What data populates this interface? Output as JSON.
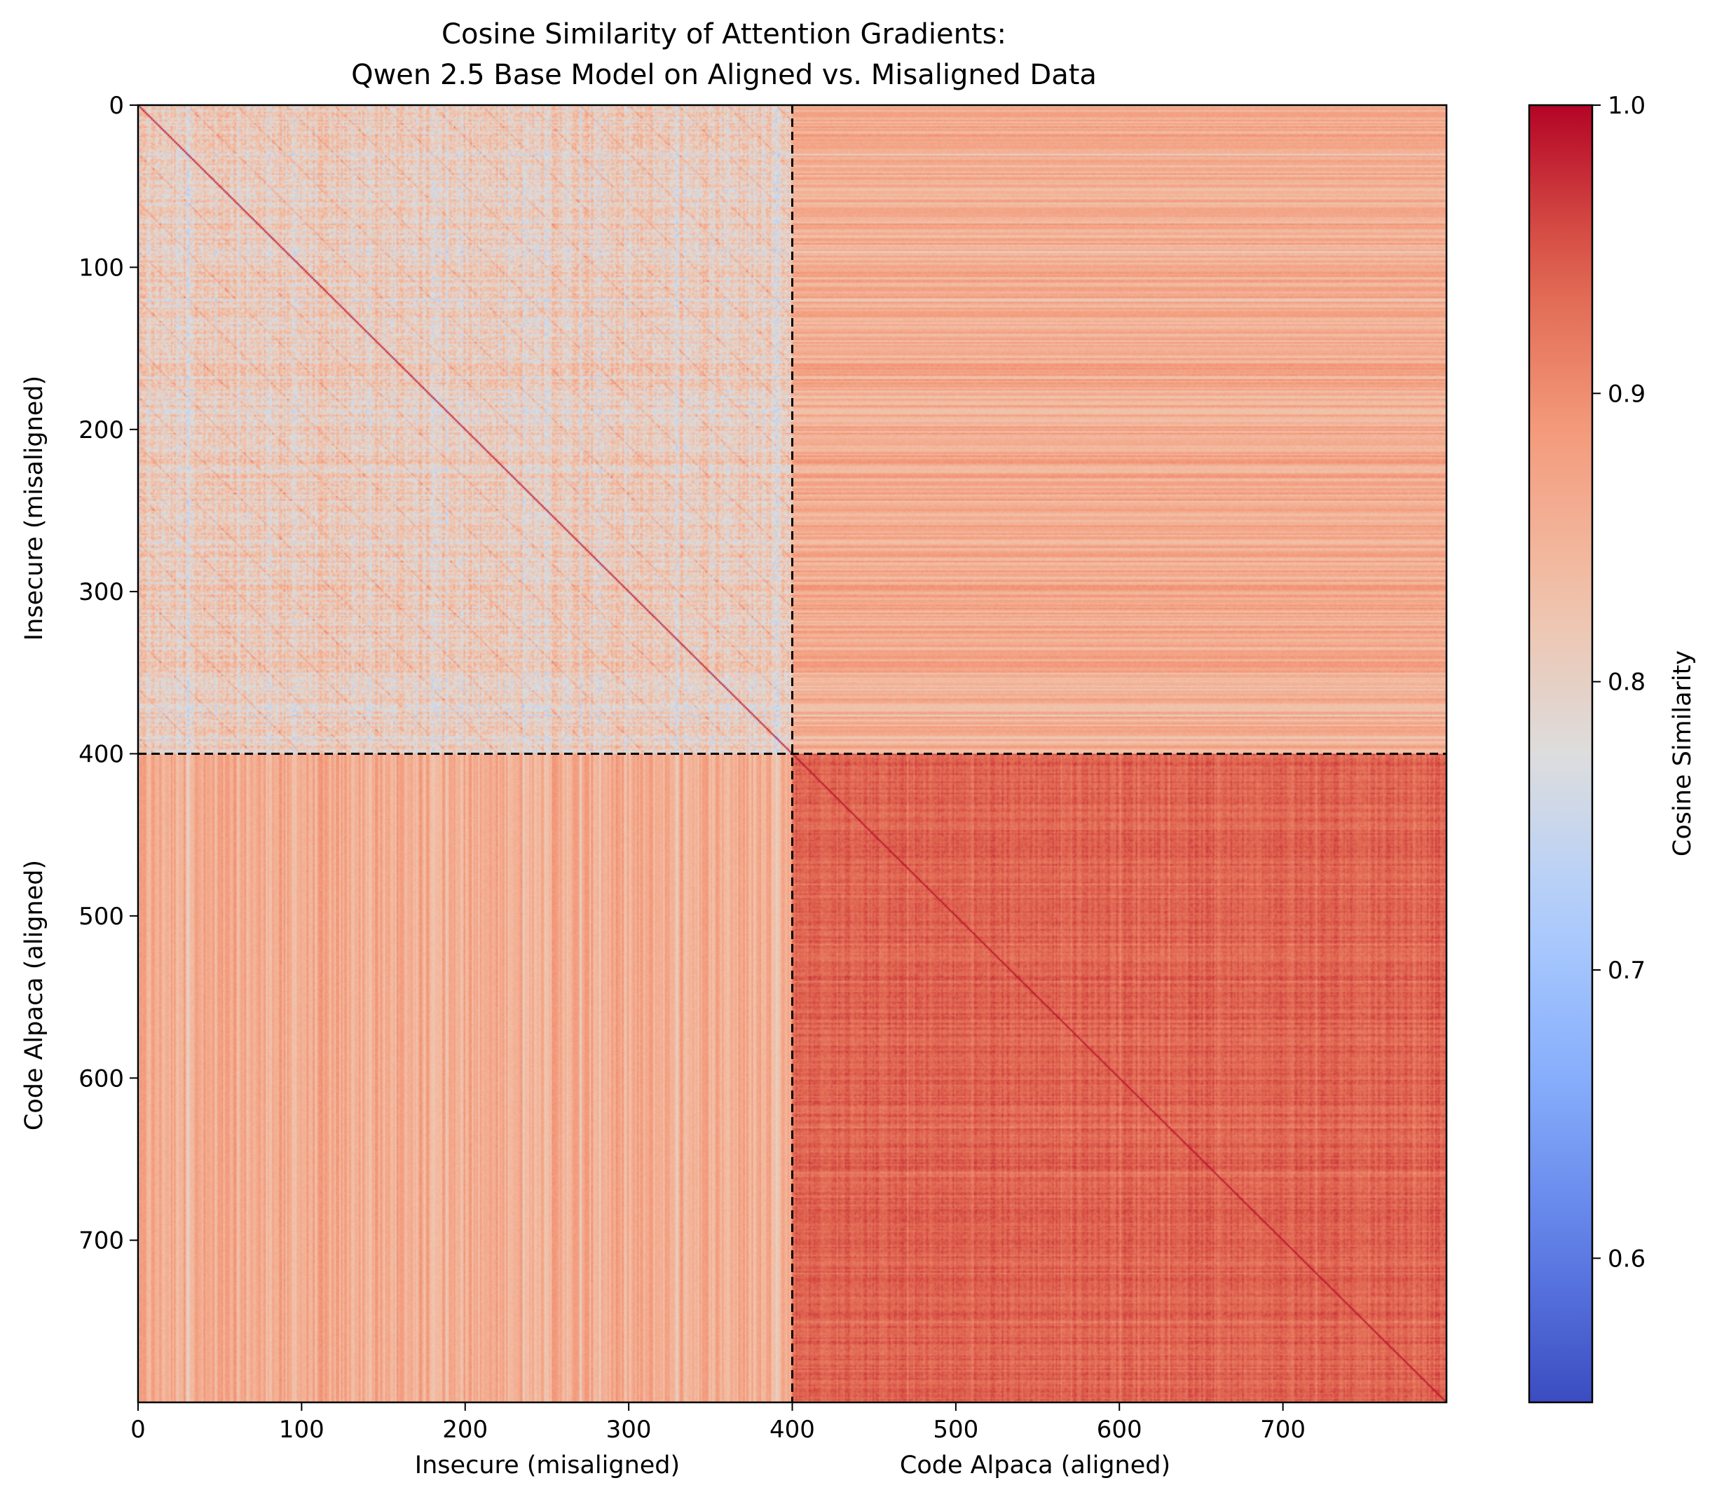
{
  "chart_data": {
    "type": "heatmap",
    "title": "Cosine Similarity of Attention Gradients:",
    "subtitle": "Qwen 2.5 Base Model on Aligned vs. Misaligned Data",
    "ylabel_top": "Insecure (misaligned)",
    "ylabel_bottom": "Code Alpaca (aligned)",
    "xlabel_left": "Insecure (misaligned)",
    "xlabel_right": "Code Alpaca (aligned)",
    "n_samples": 800,
    "group_boundary": 400,
    "xlim": [
      0,
      800
    ],
    "ylim": [
      800,
      0
    ],
    "x_ticks": [
      0,
      100,
      200,
      300,
      400,
      500,
      600,
      700
    ],
    "y_ticks": [
      0,
      100,
      200,
      300,
      400,
      500,
      600,
      700
    ],
    "colorbar": {
      "label": "Cosine Similarity",
      "colormap": "coolwarm",
      "vmin": 0.55,
      "vmax": 1.0,
      "ticks": [
        0.6,
        0.7,
        0.8,
        0.9,
        1.0
      ],
      "tick_labels": [
        "0.6",
        "0.7",
        "0.8",
        "0.9",
        "1.0"
      ]
    },
    "blocks": [
      {
        "rows": "Insecure (misaligned)",
        "cols": "Insecure (misaligned)",
        "approx_mean": 0.81,
        "diagonal": 1.0
      },
      {
        "rows": "Insecure (misaligned)",
        "cols": "Code Alpaca (aligned)",
        "approx_mean": 0.86
      },
      {
        "rows": "Code Alpaca (aligned)",
        "cols": "Insecure (misaligned)",
        "approx_mean": 0.86
      },
      {
        "rows": "Code Alpaca (aligned)",
        "cols": "Code Alpaca (aligned)",
        "approx_mean": 0.94,
        "diagonal": 1.0
      }
    ],
    "boundary_line_style": "black dashed"
  }
}
